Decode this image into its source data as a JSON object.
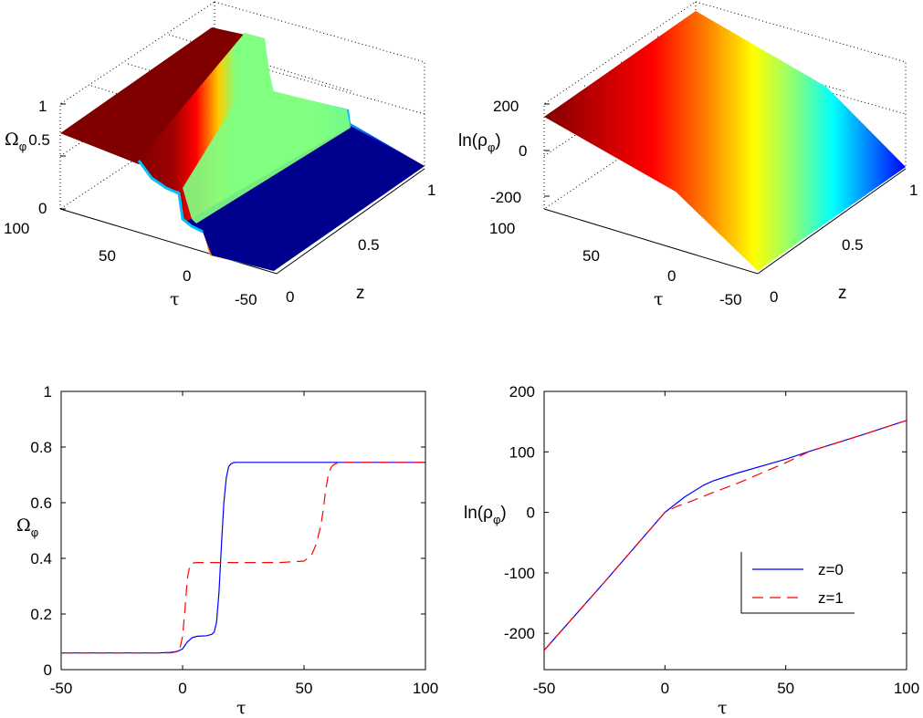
{
  "chart_data": [
    {
      "panel": "top-left",
      "type": "surface",
      "zlabel": "Ω",
      "zlabel_sub": "φ",
      "xlabel": "τ",
      "ylabel": "z",
      "z_ticks": [
        "0",
        "0.5",
        "1"
      ],
      "tau_ticks": [
        "100",
        "50",
        "0",
        "-50"
      ],
      "z_axis_ticks": [
        "0",
        "0.5",
        "1"
      ],
      "xlim": [
        -50,
        100
      ],
      "ylim": [
        0,
        1
      ],
      "zlim": [
        0,
        1
      ],
      "surface": {
        "tau": [
          -50,
          -5,
          0,
          3,
          8,
          15,
          18,
          25,
          55,
          60,
          65,
          100
        ],
        "z0": [
          0.06,
          0.06,
          0.09,
          0.115,
          0.12,
          0.14,
          0.5,
          0.745,
          0.745,
          0.745,
          0.745,
          0.745
        ],
        "z1": [
          0.06,
          0.06,
          0.2,
          0.38,
          0.385,
          0.385,
          0.385,
          0.385,
          0.39,
          0.58,
          0.745,
          0.745
        ]
      }
    },
    {
      "panel": "top-right",
      "type": "surface",
      "zlabel": "ln(ρ",
      "zlabel_sub": "φ",
      "zlabel_end": ")",
      "xlabel": "τ",
      "ylabel": "z",
      "z_ticks": [
        "-200",
        "0",
        "200"
      ],
      "tau_ticks": [
        "100",
        "50",
        "0",
        "-50"
      ],
      "z_axis_ticks": [
        "0",
        "0.5",
        "1"
      ],
      "xlim": [
        -50,
        100
      ],
      "ylim": [
        0,
        1
      ],
      "zlim": [
        -230,
        230
      ]
    },
    {
      "panel": "bottom-left",
      "type": "line",
      "xlabel": "τ",
      "ylabel": "Ω",
      "ylabel_sub": "φ",
      "xlim": [
        -50,
        100
      ],
      "ylim": [
        0,
        1
      ],
      "x_ticks": [
        "-50",
        "0",
        "50",
        "100"
      ],
      "y_ticks": [
        "0",
        "0.2",
        "0.4",
        "0.6",
        "0.8",
        "1"
      ],
      "series": [
        {
          "name": "z=0",
          "color": "#0000ff",
          "style": "solid",
          "x": [
            -50,
            -10,
            -5,
            -2,
            0,
            2,
            4,
            6,
            8,
            10,
            12,
            13,
            14,
            15,
            16,
            17,
            18,
            19,
            20,
            21,
            22,
            23,
            25,
            30,
            100
          ],
          "y": [
            0.06,
            0.06,
            0.062,
            0.066,
            0.075,
            0.1,
            0.115,
            0.12,
            0.121,
            0.122,
            0.127,
            0.135,
            0.17,
            0.28,
            0.45,
            0.6,
            0.69,
            0.73,
            0.74,
            0.744,
            0.745,
            0.745,
            0.745,
            0.745,
            0.745
          ]
        },
        {
          "name": "z=1",
          "color": "#ff0000",
          "style": "dashed",
          "x": [
            -50,
            -5,
            -2,
            -1,
            0,
            1,
            2,
            3,
            4,
            6,
            10,
            40,
            50,
            53,
            55,
            57,
            58,
            59,
            60,
            61,
            62,
            63,
            64,
            66,
            100
          ],
          "y": [
            0.06,
            0.06,
            0.065,
            0.08,
            0.12,
            0.22,
            0.33,
            0.375,
            0.383,
            0.385,
            0.385,
            0.385,
            0.39,
            0.41,
            0.45,
            0.52,
            0.58,
            0.65,
            0.7,
            0.725,
            0.735,
            0.74,
            0.743,
            0.745,
            0.745
          ]
        }
      ]
    },
    {
      "panel": "bottom-right",
      "type": "line",
      "xlabel": "τ",
      "ylabel": "ln(ρ",
      "ylabel_sub": "φ",
      "ylabel_end": ")",
      "xlim": [
        -50,
        100
      ],
      "ylim": [
        -260,
        200
      ],
      "x_ticks": [
        "-50",
        "0",
        "50",
        "100"
      ],
      "y_ticks": [
        "-200",
        "-100",
        "0",
        "100",
        "200"
      ],
      "series": [
        {
          "name": "z=0",
          "color": "#0000ff",
          "style": "solid",
          "x": [
            -50,
            -25,
            0,
            8,
            16,
            20,
            30,
            50,
            60,
            80,
            100
          ],
          "y": [
            -228,
            -115,
            0,
            25,
            45,
            52,
            65,
            88,
            101,
            126,
            152
          ]
        },
        {
          "name": "z=1",
          "color": "#ff0000",
          "style": "dashed",
          "x": [
            -50,
            -25,
            0,
            5,
            10,
            20,
            30,
            40,
            50,
            60,
            80,
            100
          ],
          "y": [
            -228,
            -115,
            0,
            10,
            17,
            33,
            48,
            65,
            82,
            101,
            126,
            152
          ]
        }
      ],
      "legend": {
        "entries": [
          "z=0",
          "z=1"
        ],
        "location": "right"
      }
    }
  ]
}
